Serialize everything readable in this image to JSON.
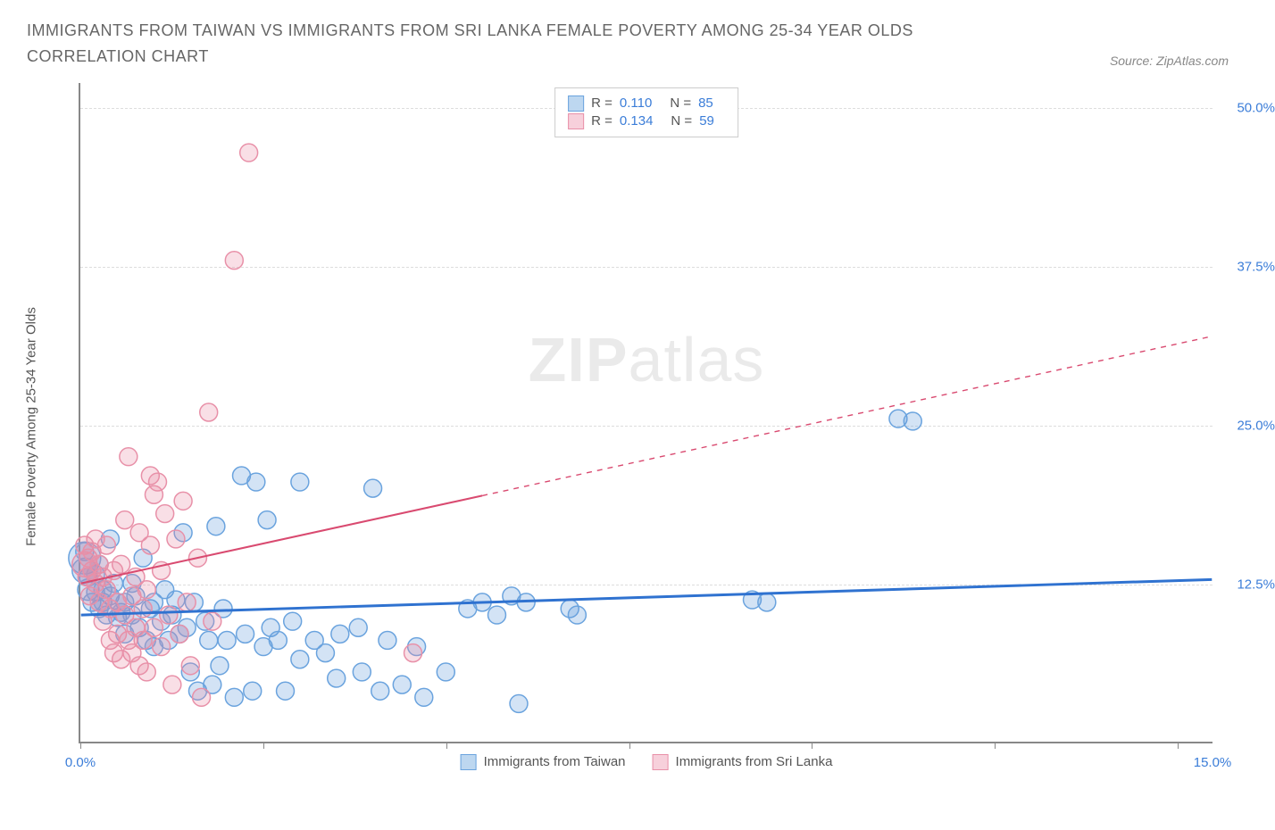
{
  "title": "IMMIGRANTS FROM TAIWAN VS IMMIGRANTS FROM SRI LANKA FEMALE POVERTY AMONG 25-34 YEAR OLDS CORRELATION CHART",
  "source_label": "Source: ZipAtlas.com",
  "watermark": {
    "bold": "ZIP",
    "light": "atlas"
  },
  "y_axis": {
    "label": "Female Poverty Among 25-34 Year Olds",
    "min": 0,
    "max": 52,
    "ticks": [
      12.5,
      25.0,
      37.5,
      50.0
    ],
    "tick_labels": [
      "12.5%",
      "25.0%",
      "37.5%",
      "50.0%"
    ]
  },
  "x_axis": {
    "min": 0,
    "max": 15.5,
    "ticks": [
      0,
      2.5,
      5.0,
      7.5,
      10.0,
      12.5,
      15.0
    ],
    "left_label": "0.0%",
    "right_label": "15.0%"
  },
  "grid_color": "#dddddd",
  "plot_bg": "#ffffff",
  "series": [
    {
      "name": "Immigrants from Taiwan",
      "color_fill": "rgba(96,155,220,0.28)",
      "color_stroke": "#6aa3de",
      "swatch_fill": "#bdd7f0",
      "swatch_border": "#6aa3de",
      "R": "0.110",
      "N": "85",
      "marker_r": 10,
      "trend": {
        "x1": 0,
        "y1": 10.0,
        "x2": 15.5,
        "y2": 12.8,
        "solid_until_x": 15.5,
        "color": "#2f72d0",
        "width": 3
      },
      "points": [
        [
          0.05,
          14.5,
          18
        ],
        [
          0.05,
          13.5,
          14
        ],
        [
          0.05,
          15.0,
          10
        ],
        [
          0.1,
          12.0,
          12
        ],
        [
          0.1,
          13.0,
          10
        ],
        [
          0.15,
          11.0,
          10
        ],
        [
          0.2,
          11.8,
          10
        ],
        [
          0.2,
          13.2,
          10
        ],
        [
          0.25,
          10.5,
          10
        ],
        [
          0.25,
          14.0,
          10
        ],
        [
          0.3,
          11.0,
          10
        ],
        [
          0.3,
          12.0,
          10
        ],
        [
          0.35,
          10.0,
          10
        ],
        [
          0.4,
          11.5,
          10
        ],
        [
          0.4,
          16.0,
          10
        ],
        [
          0.45,
          12.5,
          10
        ],
        [
          0.5,
          9.8,
          10
        ],
        [
          0.5,
          11.0,
          10
        ],
        [
          0.55,
          10.2,
          10
        ],
        [
          0.6,
          11.0,
          10
        ],
        [
          0.6,
          8.5,
          10
        ],
        [
          0.7,
          12.5,
          10
        ],
        [
          0.7,
          10.0,
          10
        ],
        [
          0.75,
          11.5,
          10
        ],
        [
          0.8,
          9.0,
          10
        ],
        [
          0.85,
          14.5,
          10
        ],
        [
          0.9,
          8.0,
          10
        ],
        [
          0.95,
          10.5,
          10
        ],
        [
          1.0,
          11.0,
          10
        ],
        [
          1.0,
          7.5,
          10
        ],
        [
          1.1,
          9.5,
          10
        ],
        [
          1.15,
          12.0,
          10
        ],
        [
          1.2,
          8.0,
          10
        ],
        [
          1.25,
          10.0,
          10
        ],
        [
          1.3,
          11.2,
          10
        ],
        [
          1.35,
          8.5,
          10
        ],
        [
          1.4,
          16.5,
          10
        ],
        [
          1.45,
          9.0,
          10
        ],
        [
          1.5,
          5.5,
          10
        ],
        [
          1.55,
          11.0,
          10
        ],
        [
          1.6,
          4.0,
          10
        ],
        [
          1.7,
          9.5,
          10
        ],
        [
          1.75,
          8.0,
          10
        ],
        [
          1.8,
          4.5,
          10
        ],
        [
          1.85,
          17.0,
          10
        ],
        [
          1.9,
          6.0,
          10
        ],
        [
          1.95,
          10.5,
          10
        ],
        [
          2.0,
          8.0,
          10
        ],
        [
          2.1,
          3.5,
          10
        ],
        [
          2.2,
          21.0,
          10
        ],
        [
          2.25,
          8.5,
          10
        ],
        [
          2.35,
          4.0,
          10
        ],
        [
          2.4,
          20.5,
          10
        ],
        [
          2.5,
          7.5,
          10
        ],
        [
          2.55,
          17.5,
          10
        ],
        [
          2.6,
          9.0,
          10
        ],
        [
          2.7,
          8.0,
          10
        ],
        [
          2.8,
          4.0,
          10
        ],
        [
          2.9,
          9.5,
          10
        ],
        [
          3.0,
          20.5,
          10
        ],
        [
          3.0,
          6.5,
          10
        ],
        [
          3.2,
          8.0,
          10
        ],
        [
          3.35,
          7.0,
          10
        ],
        [
          3.5,
          5.0,
          10
        ],
        [
          3.55,
          8.5,
          10
        ],
        [
          3.8,
          9.0,
          10
        ],
        [
          3.85,
          5.5,
          10
        ],
        [
          4.0,
          20.0,
          10
        ],
        [
          4.1,
          4.0,
          10
        ],
        [
          4.2,
          8.0,
          10
        ],
        [
          4.4,
          4.5,
          10
        ],
        [
          4.6,
          7.5,
          10
        ],
        [
          4.7,
          3.5,
          10
        ],
        [
          5.0,
          5.5,
          10
        ],
        [
          5.3,
          10.5,
          10
        ],
        [
          5.5,
          11.0,
          10
        ],
        [
          5.7,
          10.0,
          10
        ],
        [
          5.9,
          11.5,
          10
        ],
        [
          6.0,
          3.0,
          10
        ],
        [
          6.1,
          11.0,
          10
        ],
        [
          6.7,
          10.5,
          10
        ],
        [
          6.8,
          10.0,
          10
        ],
        [
          9.2,
          11.2,
          10
        ],
        [
          9.4,
          11.0,
          10
        ],
        [
          11.2,
          25.5,
          10
        ],
        [
          11.4,
          25.3,
          10
        ]
      ]
    },
    {
      "name": "Immigrants from Sri Lanka",
      "color_fill": "rgba(235,140,165,0.28)",
      "color_stroke": "#e890a8",
      "swatch_fill": "#f7d0db",
      "swatch_border": "#e890a8",
      "R": "0.134",
      "N": "59",
      "marker_r": 10,
      "trend": {
        "x1": 0,
        "y1": 12.5,
        "x2": 15.5,
        "y2": 32.0,
        "solid_until_x": 5.5,
        "color": "#d94a70",
        "width": 2
      },
      "points": [
        [
          0.05,
          14.0,
          14
        ],
        [
          0.05,
          15.5,
          10
        ],
        [
          0.08,
          13.0,
          10
        ],
        [
          0.1,
          14.5,
          10
        ],
        [
          0.12,
          11.5,
          10
        ],
        [
          0.15,
          13.5,
          10
        ],
        [
          0.15,
          15.0,
          10
        ],
        [
          0.2,
          12.5,
          10
        ],
        [
          0.2,
          16.0,
          10
        ],
        [
          0.25,
          11.0,
          10
        ],
        [
          0.25,
          14.0,
          10
        ],
        [
          0.3,
          13.0,
          10
        ],
        [
          0.3,
          9.5,
          10
        ],
        [
          0.35,
          12.0,
          10
        ],
        [
          0.35,
          15.5,
          10
        ],
        [
          0.4,
          10.5,
          10
        ],
        [
          0.4,
          8.0,
          10
        ],
        [
          0.45,
          13.5,
          10
        ],
        [
          0.45,
          7.0,
          10
        ],
        [
          0.5,
          11.0,
          10
        ],
        [
          0.5,
          8.5,
          10
        ],
        [
          0.55,
          14.0,
          10
        ],
        [
          0.55,
          6.5,
          10
        ],
        [
          0.6,
          10.0,
          10
        ],
        [
          0.6,
          17.5,
          10
        ],
        [
          0.65,
          8.0,
          10
        ],
        [
          0.65,
          22.5,
          10
        ],
        [
          0.7,
          11.5,
          10
        ],
        [
          0.7,
          7.0,
          10
        ],
        [
          0.75,
          9.0,
          10
        ],
        [
          0.75,
          13.0,
          10
        ],
        [
          0.8,
          6.0,
          10
        ],
        [
          0.8,
          16.5,
          10
        ],
        [
          0.85,
          10.5,
          10
        ],
        [
          0.85,
          8.0,
          10
        ],
        [
          0.9,
          12.0,
          10
        ],
        [
          0.9,
          5.5,
          10
        ],
        [
          0.95,
          15.5,
          10
        ],
        [
          0.95,
          21.0,
          10
        ],
        [
          1.0,
          9.0,
          10
        ],
        [
          1.0,
          19.5,
          10
        ],
        [
          1.05,
          20.5,
          10
        ],
        [
          1.1,
          7.5,
          10
        ],
        [
          1.1,
          13.5,
          10
        ],
        [
          1.15,
          18.0,
          10
        ],
        [
          1.2,
          10.0,
          10
        ],
        [
          1.25,
          4.5,
          10
        ],
        [
          1.3,
          16.0,
          10
        ],
        [
          1.35,
          8.5,
          10
        ],
        [
          1.4,
          19.0,
          10
        ],
        [
          1.45,
          11.0,
          10
        ],
        [
          1.5,
          6.0,
          10
        ],
        [
          1.6,
          14.5,
          10
        ],
        [
          1.65,
          3.5,
          10
        ],
        [
          1.75,
          26.0,
          10
        ],
        [
          1.8,
          9.5,
          10
        ],
        [
          2.1,
          38.0,
          10
        ],
        [
          2.3,
          46.5,
          10
        ],
        [
          4.55,
          7.0,
          10
        ]
      ]
    }
  ],
  "legend_bottom": [
    {
      "label": "Immigrants from Taiwan",
      "fill": "#bdd7f0",
      "border": "#6aa3de"
    },
    {
      "label": "Immigrants from Sri Lanka",
      "fill": "#f7d0db",
      "border": "#e890a8"
    }
  ]
}
